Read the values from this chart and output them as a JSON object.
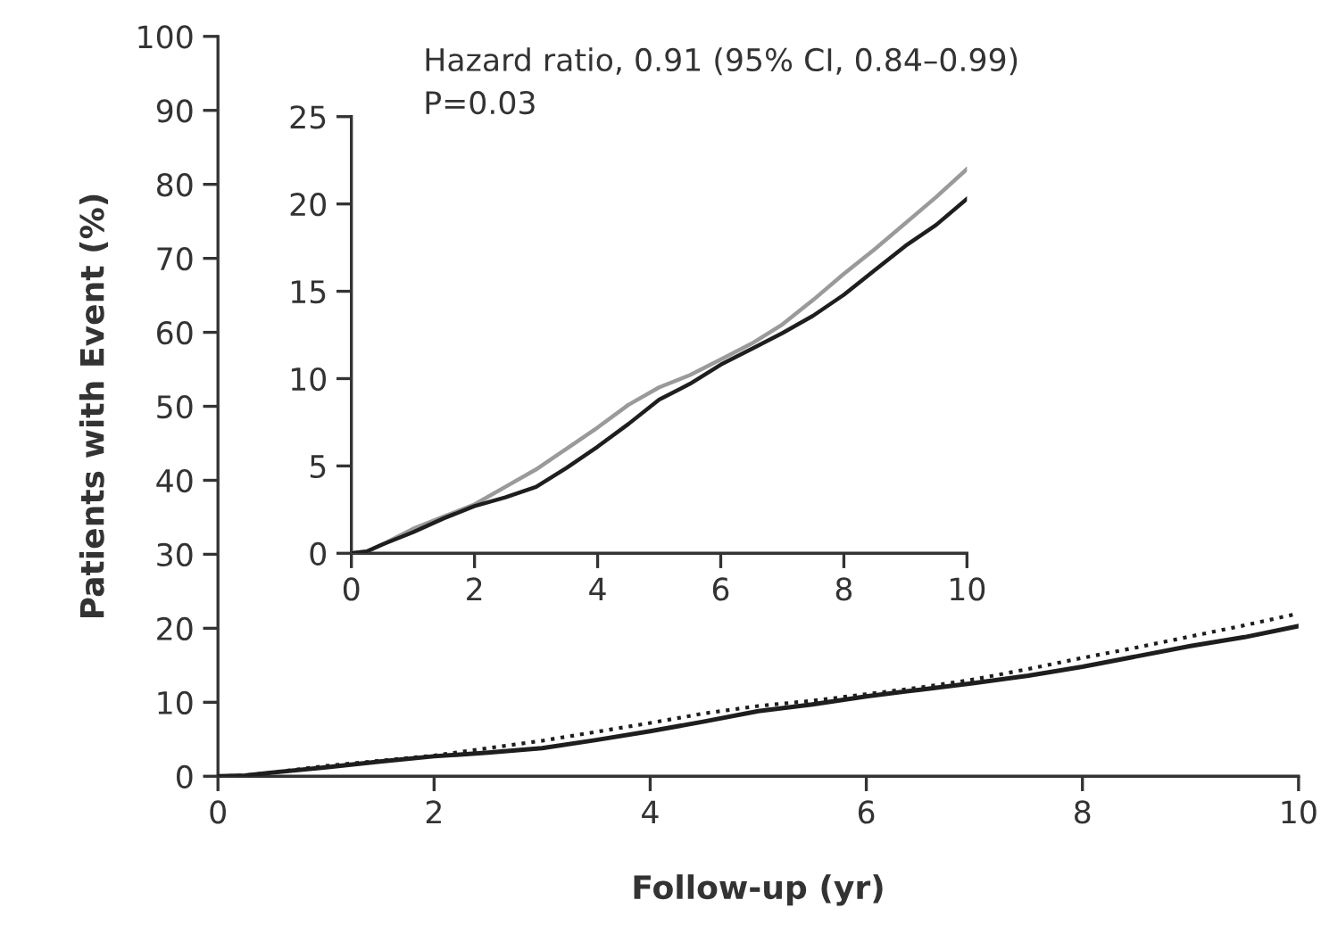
{
  "chart_data": [
    {
      "type": "line",
      "xlabel": "Follow-up (yr)",
      "ylabel": "Patients with Event (%)",
      "xlim": [
        0,
        10
      ],
      "ylim": [
        0,
        100
      ],
      "xticks": [
        0,
        2,
        4,
        6,
        8,
        10
      ],
      "yticks": [
        0,
        10,
        20,
        30,
        40,
        50,
        60,
        70,
        80,
        90,
        100
      ],
      "grid": false,
      "annotations": [
        "Hazard ratio, 0.91 (95% CI, 0.84–0.99)",
        "P=0.03"
      ],
      "x": [
        0,
        0.25,
        0.5,
        1,
        1.5,
        2,
        2.5,
        3,
        3.5,
        4,
        4.5,
        5,
        5.5,
        6,
        6.5,
        7,
        7.5,
        8,
        8.5,
        9,
        9.5,
        10
      ],
      "series": [
        {
          "color": "#1e1e1e",
          "line_style": "solid",
          "values": [
            0,
            0.1,
            0.5,
            1.2,
            2.0,
            2.7,
            3.2,
            3.8,
            4.9,
            6.1,
            7.4,
            8.8,
            9.7,
            10.8,
            11.7,
            12.6,
            13.6,
            14.8,
            16.2,
            17.6,
            18.8,
            20.3
          ]
        },
        {
          "color": "#1e1e1e",
          "line_style": "dotted",
          "values": [
            0,
            0.1,
            0.5,
            1.4,
            2.1,
            2.8,
            3.8,
            4.8,
            6.0,
            7.2,
            8.5,
            9.5,
            10.2,
            11.1,
            12.0,
            13.1,
            14.5,
            16.0,
            17.4,
            18.9,
            20.4,
            22.0
          ]
        }
      ]
    },
    {
      "type": "line",
      "xlim": [
        0,
        10
      ],
      "ylim": [
        0,
        25
      ],
      "xticks": [
        0,
        2,
        4,
        6,
        8,
        10
      ],
      "yticks": [
        0,
        5,
        10,
        15,
        20,
        25
      ],
      "grid": false,
      "x": [
        0,
        0.25,
        0.5,
        1,
        1.5,
        2,
        2.5,
        3,
        3.5,
        4,
        4.5,
        5,
        5.5,
        6,
        6.5,
        7,
        7.5,
        8,
        8.5,
        9,
        9.5,
        10
      ],
      "series": [
        {
          "color": "#1e1e1e",
          "line_style": "solid",
          "values": [
            0,
            0.1,
            0.5,
            1.2,
            2.0,
            2.7,
            3.2,
            3.8,
            4.9,
            6.1,
            7.4,
            8.8,
            9.7,
            10.8,
            11.7,
            12.6,
            13.6,
            14.8,
            16.2,
            17.6,
            18.8,
            20.3
          ]
        },
        {
          "color": "#9a9a9a",
          "line_style": "solid",
          "values": [
            0,
            0.1,
            0.5,
            1.4,
            2.1,
            2.8,
            3.8,
            4.8,
            6.0,
            7.2,
            8.5,
            9.5,
            10.2,
            11.1,
            12.0,
            13.1,
            14.5,
            16.0,
            17.4,
            18.9,
            20.4,
            22.0
          ]
        }
      ]
    }
  ]
}
